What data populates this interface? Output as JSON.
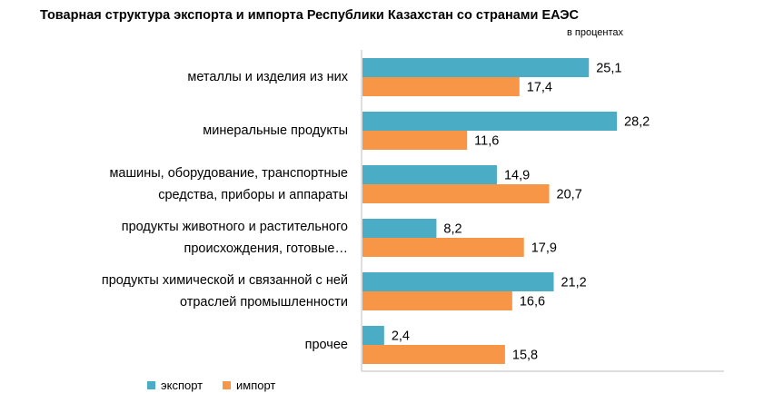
{
  "chart_data": {
    "type": "bar",
    "orientation": "horizontal",
    "title": "Товарная структура экспорта и импорта Республики Казахстан со странами ЕАЭС",
    "subtitle": "в процентах",
    "categories": [
      "металлы и изделия из них",
      "минеральные продукты",
      "машины, оборудование, транспортные средства, приборы и аппараты",
      "продукты животного и растительного происхождения, готовые…",
      "продукты химической и связанной с ней отраслей промышленности",
      "прочее"
    ],
    "category_lines": [
      [
        "металлы и изделия из них"
      ],
      [
        "минеральные продукты"
      ],
      [
        "машины, оборудование, транспортные",
        "средства, приборы и аппараты"
      ],
      [
        "продукты животного и растительного",
        "происхождения, готовые…"
      ],
      [
        "продукты химической  и связанной  с ней",
        "отраслей промышленности"
      ],
      [
        "прочее"
      ]
    ],
    "series": [
      {
        "name": "экспорт",
        "color": "#4BACC6",
        "values": [
          25.1,
          28.2,
          14.9,
          8.2,
          21.2,
          2.4
        ],
        "labels": [
          "25,1",
          "28,2",
          "14,9",
          "8,2",
          "21,2",
          "2,4"
        ]
      },
      {
        "name": "импорт",
        "color": "#F79646",
        "values": [
          17.4,
          11.6,
          20.7,
          17.9,
          16.6,
          15.8
        ],
        "labels": [
          "17,4",
          "11,6",
          "20,7",
          "17,9",
          "16,6",
          "15,8"
        ]
      }
    ],
    "xlim": [
      0,
      40
    ],
    "grid": false,
    "legend_position": "bottom-left"
  }
}
